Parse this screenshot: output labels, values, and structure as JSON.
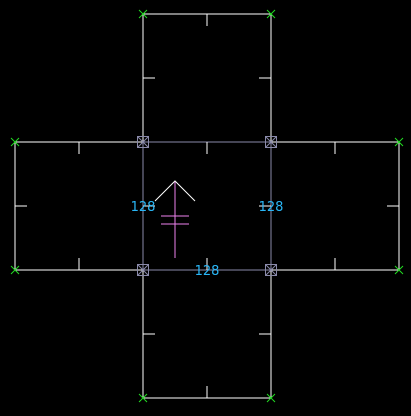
{
  "colors": {
    "background": "#000000",
    "outline": "#ffffff",
    "inner_edges": "#8a8aaa",
    "vertex_markers": "#22dd22",
    "dimension_text": "#29b6f6",
    "direction_arrow": "#ee82ee"
  },
  "dimensions": {
    "left_edge": "128",
    "right_edge": "128",
    "bottom_edge": "128"
  },
  "icons": {
    "vertex": "green-x-marker-icon",
    "joint": "boxed-x-marker-icon",
    "direction": "up-arrow-icon"
  }
}
